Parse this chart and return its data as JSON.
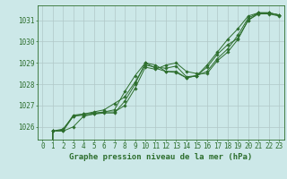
{
  "background_color": "#cce8e8",
  "grid_color": "#b0c8c8",
  "line_color": "#2d6e2d",
  "title": "Graphe pression niveau de la mer (hPa)",
  "xlim": [
    -0.5,
    23.5
  ],
  "ylim": [
    1025.4,
    1031.7
  ],
  "yticks": [
    1026,
    1027,
    1028,
    1029,
    1030,
    1031
  ],
  "xticks": [
    0,
    1,
    2,
    3,
    4,
    5,
    6,
    7,
    8,
    9,
    10,
    11,
    12,
    13,
    14,
    15,
    16,
    17,
    18,
    19,
    20,
    21,
    22,
    23
  ],
  "series": [
    [
      0,
      1025.8,
      1025.8,
      1026.0,
      1026.5,
      1026.6,
      1026.7,
      1026.7,
      1027.0,
      1027.8,
      1028.8,
      1028.7,
      1028.9,
      1029.0,
      1028.6,
      1028.5,
      1028.5,
      1029.1,
      1029.5,
      1030.1,
      1031.0,
      1031.3,
      1031.3,
      1031.2
    ],
    [
      0,
      1025.8,
      1025.9,
      1026.5,
      1026.6,
      1026.7,
      1026.8,
      1027.1,
      1027.4,
      1028.1,
      1028.9,
      1028.8,
      1028.75,
      1028.85,
      1028.35,
      1028.4,
      1028.6,
      1029.2,
      1029.65,
      1030.3,
      1031.1,
      1031.35,
      1031.35,
      1031.25
    ],
    [
      0,
      1025.8,
      1025.8,
      1026.5,
      1026.55,
      1026.6,
      1026.65,
      1026.65,
      1027.2,
      1028.0,
      1029.0,
      1028.9,
      1028.6,
      1028.6,
      1028.3,
      1028.4,
      1028.9,
      1029.5,
      1030.1,
      1030.6,
      1031.2,
      1031.35,
      1031.35,
      1031.25
    ],
    [
      0,
      1025.8,
      1025.85,
      1026.55,
      1026.6,
      1026.65,
      1026.7,
      1026.8,
      1027.65,
      1028.4,
      1029.0,
      1028.75,
      1028.6,
      1028.55,
      1028.3,
      1028.4,
      1028.8,
      1029.4,
      1029.85,
      1030.15,
      1031.0,
      1031.35,
      1031.35,
      1031.25
    ]
  ],
  "title_fontsize": 6.5,
  "tick_fontsize": 5.5
}
